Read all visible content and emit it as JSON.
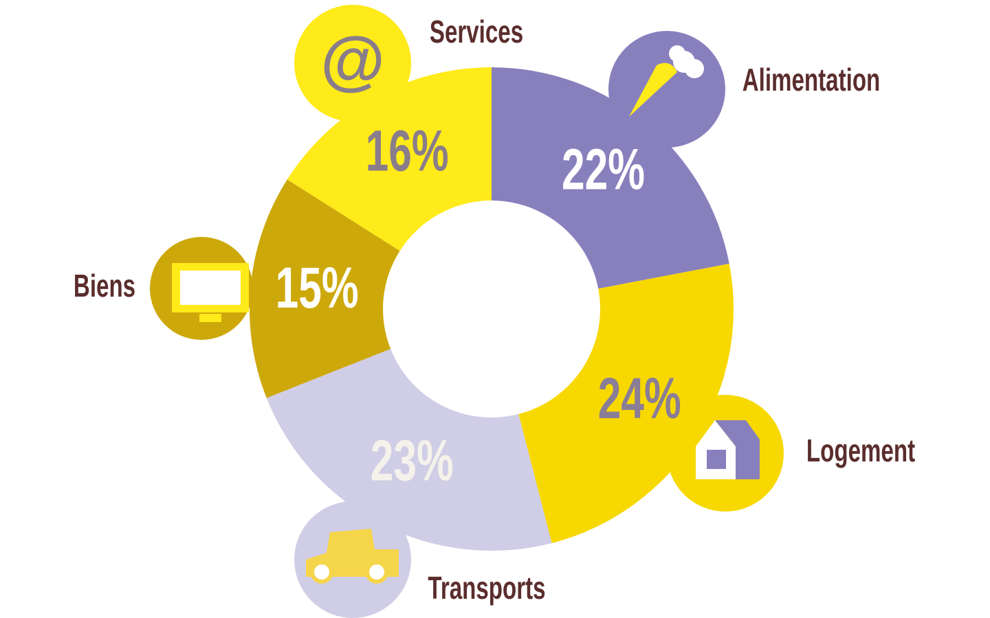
{
  "chart_data": {
    "type": "donut",
    "categories": [
      "Alimentation",
      "Logement",
      "Transports",
      "Biens",
      "Services"
    ],
    "values": [
      22,
      24,
      23,
      15,
      16
    ],
    "value_labels": [
      "22%",
      "24%",
      "23%",
      "15%",
      "16%"
    ],
    "colors": [
      "#8880bd",
      "#f7d800",
      "#d0cde6",
      "#cda80a",
      "#ffea1a"
    ],
    "label_colors": [
      "#ffffff",
      "#8a7d96",
      "#f4f2ea",
      "#ffffff",
      "#8a7d8a"
    ]
  }
}
